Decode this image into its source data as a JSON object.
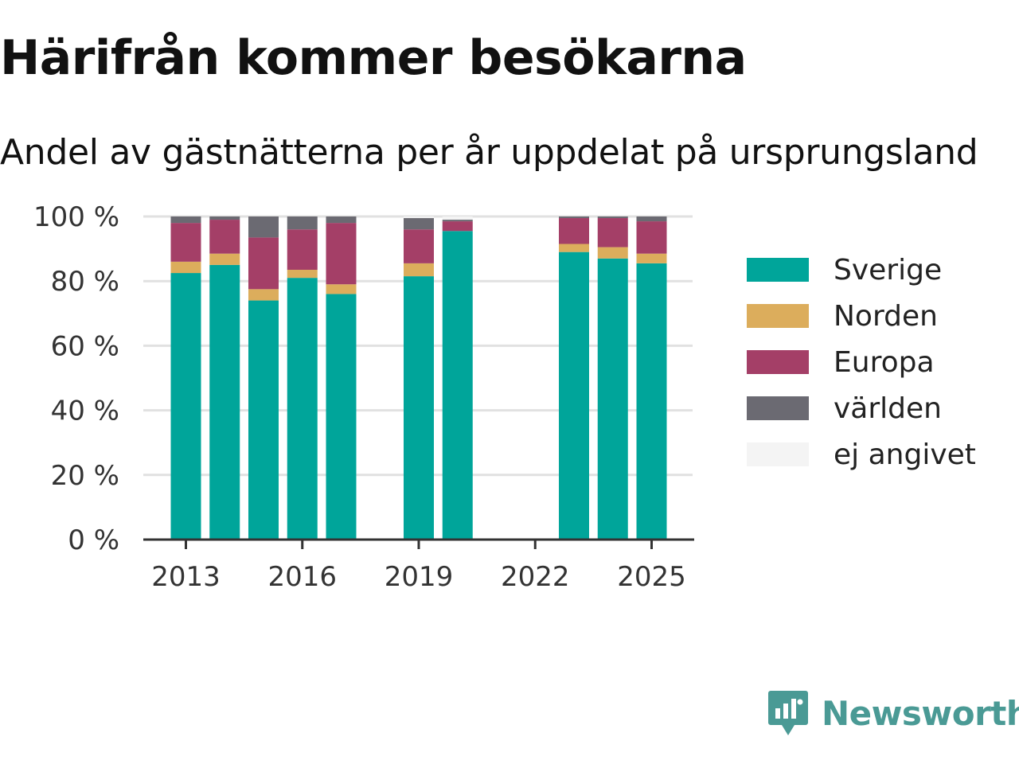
{
  "title": "Härifrån kommer besökarna",
  "subtitle": "Andel av gästnätterna per år uppdelat på ursprungsland",
  "brand": "Newsworthy",
  "colors": {
    "Sverige": "#00a59a",
    "Norden": "#dcad5c",
    "Europa": "#a43f67",
    "världen": "#6b6a72",
    "ej angivet": "#f4f4f4",
    "grid": "#e1e1e1",
    "axis": "#333333",
    "brand": "#4a9a95"
  },
  "chart_data": {
    "type": "bar",
    "stacked": true,
    "categories": [
      2013,
      2014,
      2015,
      2016,
      2017,
      2018,
      2019,
      2020,
      2021,
      2022,
      2023,
      2024,
      2025
    ],
    "x_ticks": [
      "2013",
      "2016",
      "2019",
      "2022",
      "2025"
    ],
    "y_ticks": [
      "0 %",
      "20 %",
      "40 %",
      "60 %",
      "80 %",
      "100 %"
    ],
    "ylim": [
      0,
      100
    ],
    "grid": true,
    "legend_position": "right",
    "series": [
      {
        "name": "Sverige",
        "values": [
          82.5,
          85,
          74,
          81,
          76,
          null,
          81.5,
          95.5,
          null,
          null,
          89,
          87,
          85.5
        ]
      },
      {
        "name": "Norden",
        "values": [
          3.5,
          3.5,
          3.5,
          2.5,
          3,
          null,
          4,
          0,
          null,
          null,
          2.5,
          3.5,
          3
        ]
      },
      {
        "name": "Europa",
        "values": [
          12,
          10.5,
          16,
          12.5,
          19,
          null,
          10.5,
          3,
          null,
          null,
          8,
          9,
          10
        ]
      },
      {
        "name": "världen",
        "values": [
          2,
          1,
          6.5,
          4,
          2,
          null,
          3.5,
          0.5,
          null,
          null,
          0.5,
          0.5,
          1.5
        ]
      },
      {
        "name": "ej angivet",
        "values": [
          0,
          0,
          0,
          0,
          0,
          null,
          0.5,
          1,
          null,
          null,
          0,
          0,
          0
        ]
      }
    ]
  }
}
